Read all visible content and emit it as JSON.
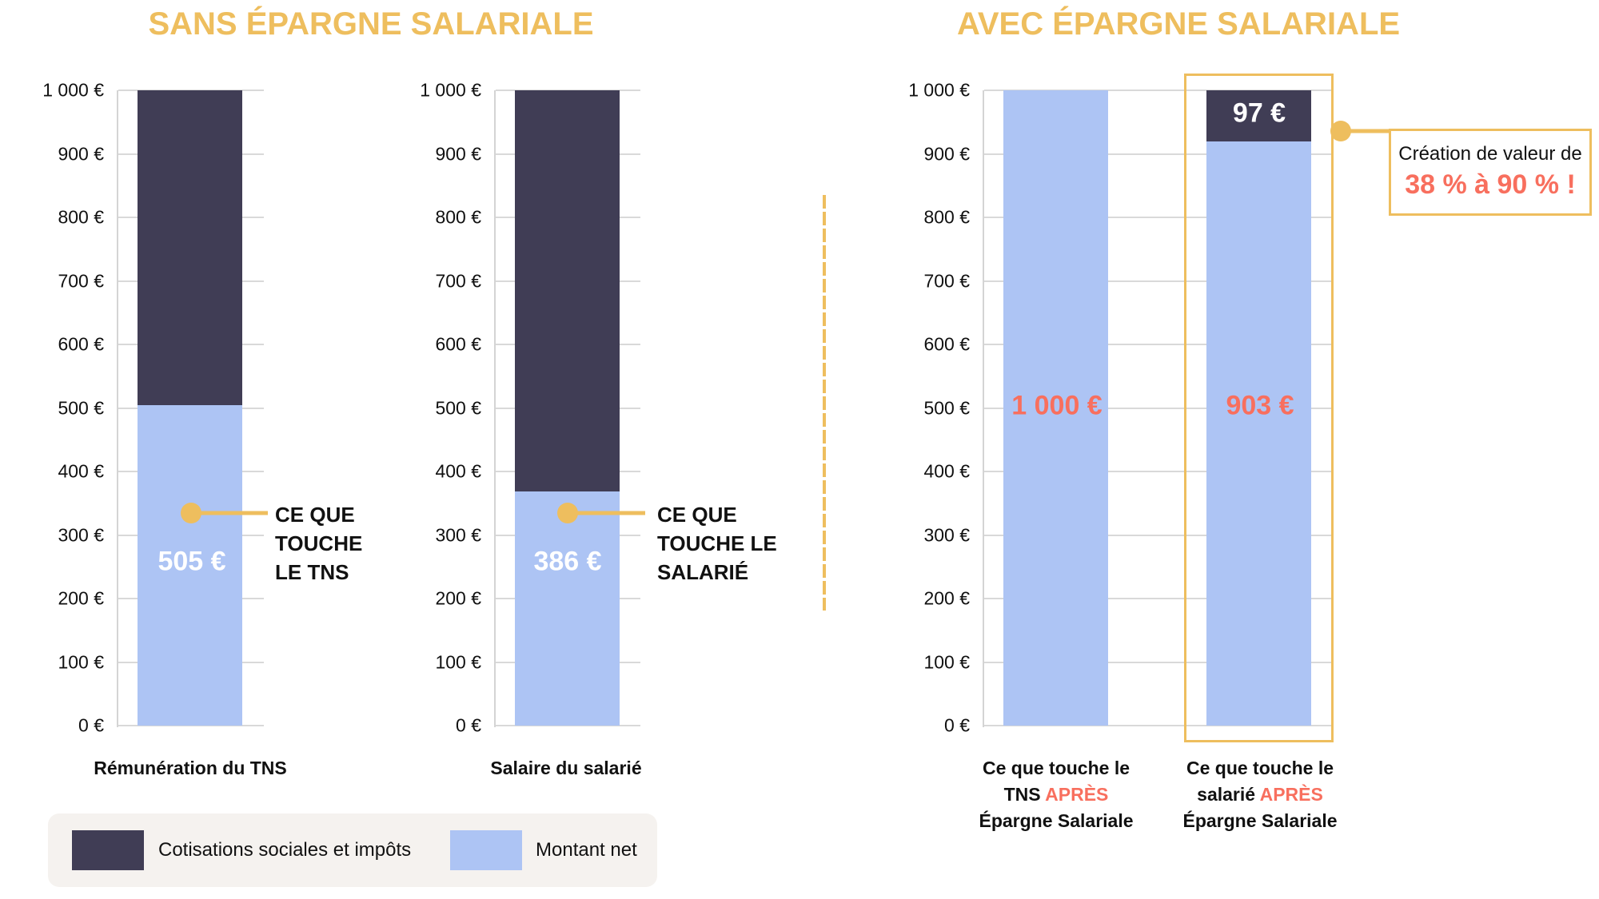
{
  "titles": {
    "left": "SANS ÉPARGNE SALARIALE",
    "right": "AVEC ÉPARGNE SALARIALE"
  },
  "y_ticks": [
    "1 000 €",
    "900 €",
    "800 €",
    "700 €",
    "600 €",
    "500 €",
    "400 €",
    "300 €",
    "200 €",
    "100 €",
    "0 €"
  ],
  "charts": {
    "tns": {
      "category": "Rémunération du TNS",
      "net_label": "505 €",
      "annotation": [
        "CE QUE",
        "TOUCHE",
        "LE TNS"
      ]
    },
    "salarie": {
      "category": "Salaire du salarié",
      "net_label": "386 €",
      "annotation": [
        "CE QUE",
        "TOUCHE LE",
        "SALARIÉ"
      ]
    },
    "tns_apres": {
      "category_line1": "Ce que touche le",
      "category_line2_prefix": "TNS ",
      "category_line2_highlight": "APRÈS",
      "category_line3": "Épargne Salariale",
      "net_label": "1 000 €"
    },
    "salarie_apres": {
      "category_line1": "Ce que touche le",
      "category_line2_prefix": "salarié ",
      "category_line2_highlight": "APRÈS",
      "category_line3": "Épargne Salariale",
      "net_label": "903 €",
      "cost_label": "97 €"
    }
  },
  "callout": {
    "line1": "Création de valeur de",
    "line2": "38 % à 90 % !"
  },
  "legend": {
    "items": [
      {
        "label": "Cotisations sociales et impôts",
        "color": "#403D55"
      },
      {
        "label": "Montant net",
        "color": "#ADC4F4"
      }
    ]
  },
  "colors": {
    "accent": "#EEBE5E",
    "dark": "#403D55",
    "light": "#ADC4F4",
    "highlight_red": "#F86F5E",
    "legend_bg": "#F5F2EF"
  },
  "chart_data": {
    "type": "bar",
    "stacked": true,
    "title": "SANS ÉPARGNE SALARIALE / AVEC ÉPARGNE SALARIALE",
    "categories": [
      "Rémunération du TNS",
      "Salaire du salarié",
      "Ce que touche le TNS APRÈS Épargne Salariale",
      "Ce que touche le salarié APRÈS Épargne Salariale"
    ],
    "series": [
      {
        "name": "Montant net",
        "values": [
          505,
          386,
          1000,
          903
        ]
      },
      {
        "name": "Cotisations sociales et impôts",
        "values": [
          495,
          614,
          0,
          97
        ]
      }
    ],
    "data_labels": [
      "505 €",
      "386 €",
      "1 000 €",
      "903 €",
      "97 €"
    ],
    "xlabel": "",
    "ylabel": "",
    "ylim": [
      0,
      1000
    ],
    "ytick_step": 100,
    "grid": true,
    "legend_position": "bottom-left",
    "annotations": [
      "CE QUE TOUCHE LE TNS",
      "CE QUE TOUCHE LE SALARIÉ",
      "Création de valeur de 38 % à 90 % !"
    ]
  }
}
